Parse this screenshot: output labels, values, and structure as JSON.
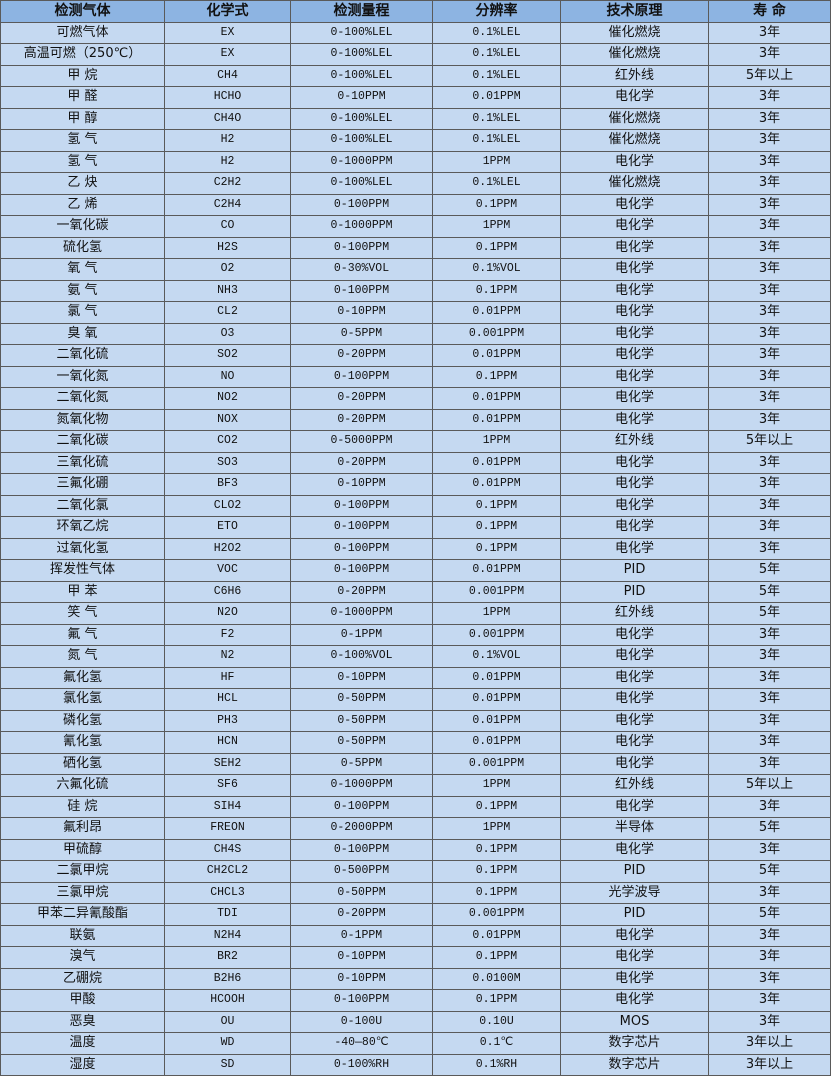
{
  "colors": {
    "header_bg": "#8db4e2",
    "row_bg": "#c5d9f1",
    "border": "#5a5a5a"
  },
  "headers": [
    "检测气体",
    "化学式",
    "检测量程",
    "分辨率",
    "技术原理",
    "寿 命"
  ],
  "rows": [
    [
      "可燃气体",
      "EX",
      "0-100%LEL",
      "0.1%LEL",
      "催化燃烧",
      "3年"
    ],
    [
      "高温可燃（250℃）",
      "EX",
      "0-100%LEL",
      "0.1%LEL",
      "催化燃烧",
      "3年"
    ],
    [
      "甲 烷",
      "CH4",
      "0-100%LEL",
      "0.1%LEL",
      "红外线",
      "5年以上"
    ],
    [
      "甲 醛",
      "HCHO",
      "0-10PPM",
      "0.01PPM",
      "电化学",
      "3年"
    ],
    [
      "甲 醇",
      "CH4O",
      "0-100%LEL",
      "0.1%LEL",
      "催化燃烧",
      "3年"
    ],
    [
      "氢 气",
      "H2",
      "0-100%LEL",
      "0.1%LEL",
      "催化燃烧",
      "3年"
    ],
    [
      "氢 气",
      "H2",
      "0-1000PPM",
      "1PPM",
      "电化学",
      "3年"
    ],
    [
      "乙 炔",
      "C2H2",
      "0-100%LEL",
      "0.1%LEL",
      "催化燃烧",
      "3年"
    ],
    [
      "乙 烯",
      "C2H4",
      "0-100PPM",
      "0.1PPM",
      "电化学",
      "3年"
    ],
    [
      "一氧化碳",
      "CO",
      "0-1000PPM",
      "1PPM",
      "电化学",
      "3年"
    ],
    [
      "硫化氢",
      "H2S",
      "0-100PPM",
      "0.1PPM",
      "电化学",
      "3年"
    ],
    [
      "氧 气",
      "O2",
      "0-30%VOL",
      "0.1%VOL",
      "电化学",
      "3年"
    ],
    [
      "氨 气",
      "NH3",
      "0-100PPM",
      "0.1PPM",
      "电化学",
      "3年"
    ],
    [
      "氯 气",
      "CL2",
      "0-10PPM",
      "0.01PPM",
      "电化学",
      "3年"
    ],
    [
      "臭 氧",
      "O3",
      "0-5PPM",
      "0.001PPM",
      "电化学",
      "3年"
    ],
    [
      "二氧化硫",
      "SO2",
      "0-20PPM",
      "0.01PPM",
      "电化学",
      "3年"
    ],
    [
      "一氧化氮",
      "NO",
      "0-100PPM",
      "0.1PPM",
      "电化学",
      "3年"
    ],
    [
      "二氧化氮",
      "NO2",
      "0-20PPM",
      "0.01PPM",
      "电化学",
      "3年"
    ],
    [
      "氮氧化物",
      "NOX",
      "0-20PPM",
      "0.01PPM",
      "电化学",
      "3年"
    ],
    [
      "二氧化碳",
      "CO2",
      "0-5000PPM",
      "1PPM",
      "红外线",
      "5年以上"
    ],
    [
      "三氧化硫",
      "SO3",
      "0-20PPM",
      "0.01PPM",
      "电化学",
      "3年"
    ],
    [
      "三氟化硼",
      "BF3",
      "0-10PPM",
      "0.01PPM",
      "电化学",
      "3年"
    ],
    [
      "二氧化氯",
      "CLO2",
      "0-100PPM",
      "0.1PPM",
      "电化学",
      "3年"
    ],
    [
      "环氧乙烷",
      "ETO",
      "0-100PPM",
      "0.1PPM",
      "电化学",
      "3年"
    ],
    [
      "过氧化氢",
      "H2O2",
      "0-100PPM",
      "0.1PPM",
      "电化学",
      "3年"
    ],
    [
      "挥发性气体",
      "VOC",
      "0-100PPM",
      "0.01PPM",
      "PID",
      "5年"
    ],
    [
      "甲 苯",
      "C6H6",
      "0-20PPM",
      "0.001PPM",
      "PID",
      "5年"
    ],
    [
      "笑 气",
      "N2O",
      "0-1000PPM",
      "1PPM",
      "红外线",
      "5年"
    ],
    [
      "氟 气",
      "F2",
      "0-1PPM",
      "0.001PPM",
      "电化学",
      "3年"
    ],
    [
      "氮 气",
      "N2",
      "0-100%VOL",
      "0.1%VOL",
      "电化学",
      "3年"
    ],
    [
      "氟化氢",
      "HF",
      "0-10PPM",
      "0.01PPM",
      "电化学",
      "3年"
    ],
    [
      "氯化氢",
      "HCL",
      "0-50PPM",
      "0.01PPM",
      "电化学",
      "3年"
    ],
    [
      "磷化氢",
      "PH3",
      "0-50PPM",
      "0.01PPM",
      "电化学",
      "3年"
    ],
    [
      "氰化氢",
      "HCN",
      "0-50PPM",
      "0.01PPM",
      "电化学",
      "3年"
    ],
    [
      "硒化氢",
      "SEH2",
      "0-5PPM",
      "0.001PPM",
      "电化学",
      "3年"
    ],
    [
      "六氟化硫",
      "SF6",
      "0-1000PPM",
      "1PPM",
      "红外线",
      "5年以上"
    ],
    [
      "硅 烷",
      "SIH4",
      "0-100PPM",
      "0.1PPM",
      "电化学",
      "3年"
    ],
    [
      "氟利昂",
      "FREON",
      "0-2000PPM",
      "1PPM",
      "半导体",
      "5年"
    ],
    [
      "甲硫醇",
      "CH4S",
      "0-100PPM",
      "0.1PPM",
      "电化学",
      "3年"
    ],
    [
      "二氯甲烷",
      "CH2CL2",
      "0-500PPM",
      "0.1PPM",
      "PID",
      "5年"
    ],
    [
      "三氯甲烷",
      "CHCL3",
      "0-50PPM",
      "0.1PPM",
      "光学波导",
      "3年"
    ],
    [
      "甲苯二异氰酸酯",
      "TDI",
      "0-20PPM",
      "0.001PPM",
      "PID",
      "5年"
    ],
    [
      "联氨",
      "N2H4",
      "0-1PPM",
      "0.01PPM",
      "电化学",
      "3年"
    ],
    [
      "溴气",
      "BR2",
      "0-10PPM",
      "0.1PPM",
      "电化学",
      "3年"
    ],
    [
      "乙硼烷",
      "B2H6",
      "0-10PPM",
      "0.0100M",
      "电化学",
      "3年"
    ],
    [
      "甲酸",
      "HCOOH",
      "0-100PPM",
      "0.1PPM",
      "电化学",
      "3年"
    ],
    [
      "恶臭",
      "OU",
      "0-100U",
      "0.10U",
      "MOS",
      "3年"
    ],
    [
      "温度",
      "WD",
      "-40—80℃",
      "0.1℃",
      "数字芯片",
      "3年以上"
    ],
    [
      "湿度",
      "SD",
      "0-100%RH",
      "0.1%RH",
      "数字芯片",
      "3年以上"
    ]
  ]
}
